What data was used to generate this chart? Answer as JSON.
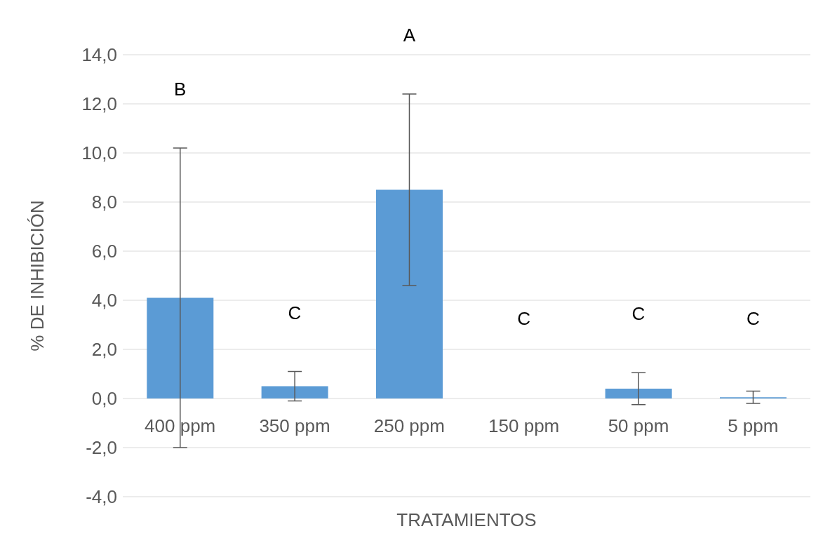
{
  "chart_data": {
    "type": "bar",
    "xlabel": "TRATAMIENTOS",
    "ylabel": "% DE INHIBICIÓN",
    "categories": [
      "400 ppm",
      "350 ppm",
      "250 ppm",
      "150 ppm",
      "50 ppm",
      "5 ppm"
    ],
    "values": [
      4.1,
      0.5,
      8.5,
      0.0,
      0.4,
      0.05
    ],
    "errors": [
      6.1,
      0.6,
      3.9,
      null,
      0.65,
      0.25
    ],
    "color": "#5b9bd5",
    "ylim": [
      -4,
      14
    ],
    "yticks": [
      {
        "value": -4,
        "label": "-4,0"
      },
      {
        "value": -2,
        "label": "-2,0"
      },
      {
        "value": 0,
        "label": "0,0"
      },
      {
        "value": 2,
        "label": "2,0"
      },
      {
        "value": 4,
        "label": "4,0"
      },
      {
        "value": 6,
        "label": "6,0"
      },
      {
        "value": 8,
        "label": "8,0"
      },
      {
        "value": 10,
        "label": "10,0"
      },
      {
        "value": 12,
        "label": "12,0"
      },
      {
        "value": 14,
        "label": "14,0"
      }
    ],
    "grid": "y",
    "annotations": [
      "B",
      "C",
      "A",
      "C",
      "C",
      "C"
    ]
  }
}
